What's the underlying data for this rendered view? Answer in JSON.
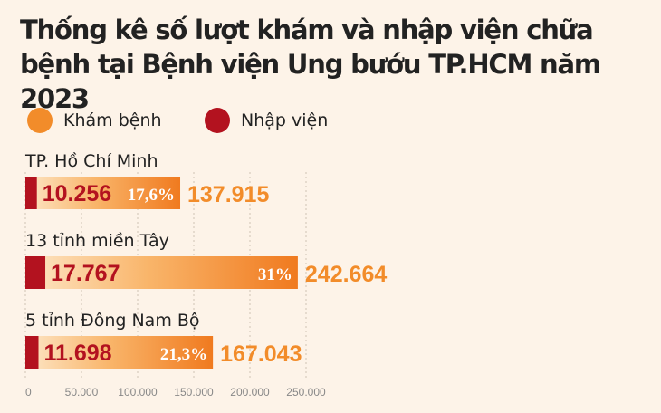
{
  "title": "Thống kê số lượt khám và nhập viện chữa bệnh tại Bệnh viện Ung bướu TP.HCM năm 2023",
  "legend": [
    {
      "label": "Khám bệnh",
      "color": "#f28c2a"
    },
    {
      "label": "Nhập viện",
      "color": "#b3121f"
    }
  ],
  "chart_data": {
    "type": "bar",
    "orientation": "horizontal",
    "title": "Thống kê số lượt khám và nhập viện chữa bệnh tại Bệnh viện Ung bướu TP.HCM năm 2023",
    "categories": [
      "TP. Hồ Chí Minh",
      "13 tỉnh miền Tây",
      "5 tỉnh Đông Nam Bộ"
    ],
    "series": [
      {
        "name": "Khám bệnh",
        "values": [
          137915,
          242664,
          167043
        ],
        "labels": [
          "137.915",
          "242.664",
          "167.043"
        ],
        "color": "#f28c2a"
      },
      {
        "name": "Nhập viện",
        "values": [
          10256,
          17767,
          11698
        ],
        "labels": [
          "10.256",
          "17.767",
          "11.698"
        ],
        "color": "#b3121f"
      }
    ],
    "percent_labels": [
      "17,6%",
      "31%",
      "21,3%"
    ],
    "xlim": [
      0,
      250000
    ],
    "xticks": [
      0,
      50000,
      100000,
      150000,
      200000,
      250000
    ],
    "xtick_labels": [
      "0",
      "50.000",
      "100.000",
      "150.000",
      "200.000",
      "250.000"
    ],
    "grid": "vertical dotted",
    "legend_position": "top-left"
  }
}
